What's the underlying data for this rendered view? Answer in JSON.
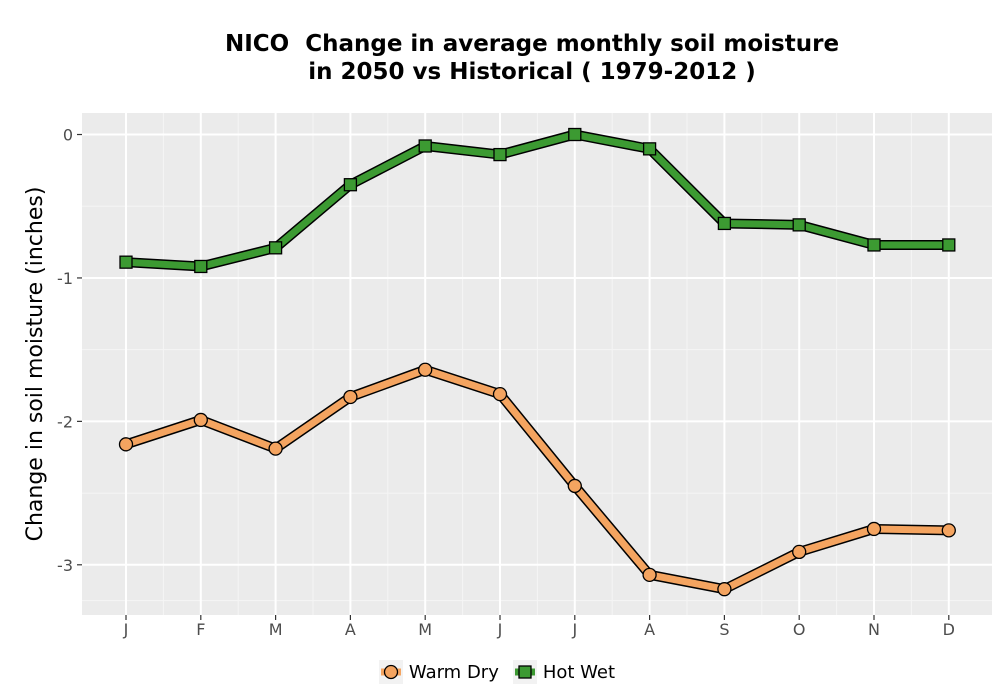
{
  "chart_data": {
    "type": "line",
    "title_line1": "NICO  Change in average monthly soil moisture",
    "title_line2": "in 2050 vs Historical ( 1979-2012 )",
    "xlabel": "",
    "ylabel": "Change in soil moisture (inches)",
    "categories": [
      "J",
      "F",
      "M",
      "A",
      "M",
      "J",
      "J",
      "A",
      "S",
      "O",
      "N",
      "D"
    ],
    "ylim": [
      -3.35,
      0.15
    ],
    "yticks": [
      0,
      -1,
      -2,
      -3
    ],
    "ytick_labels": [
      "0",
      "-1",
      "-2",
      "-3"
    ],
    "grid": true,
    "legend_position": "bottom",
    "series": [
      {
        "name": "Warm Dry",
        "color": "#f4a460",
        "marker": "circle",
        "values": [
          -2.16,
          -1.99,
          -2.19,
          -1.83,
          -1.64,
          -1.81,
          -2.45,
          -3.07,
          -3.17,
          -2.91,
          -2.75,
          -2.76
        ]
      },
      {
        "name": "Hot Wet",
        "color": "#3c9a32",
        "marker": "square",
        "values": [
          -0.89,
          -0.92,
          -0.79,
          -0.35,
          -0.08,
          -0.14,
          0.0,
          -0.1,
          -0.62,
          -0.63,
          -0.77,
          -0.77
        ]
      }
    ]
  }
}
